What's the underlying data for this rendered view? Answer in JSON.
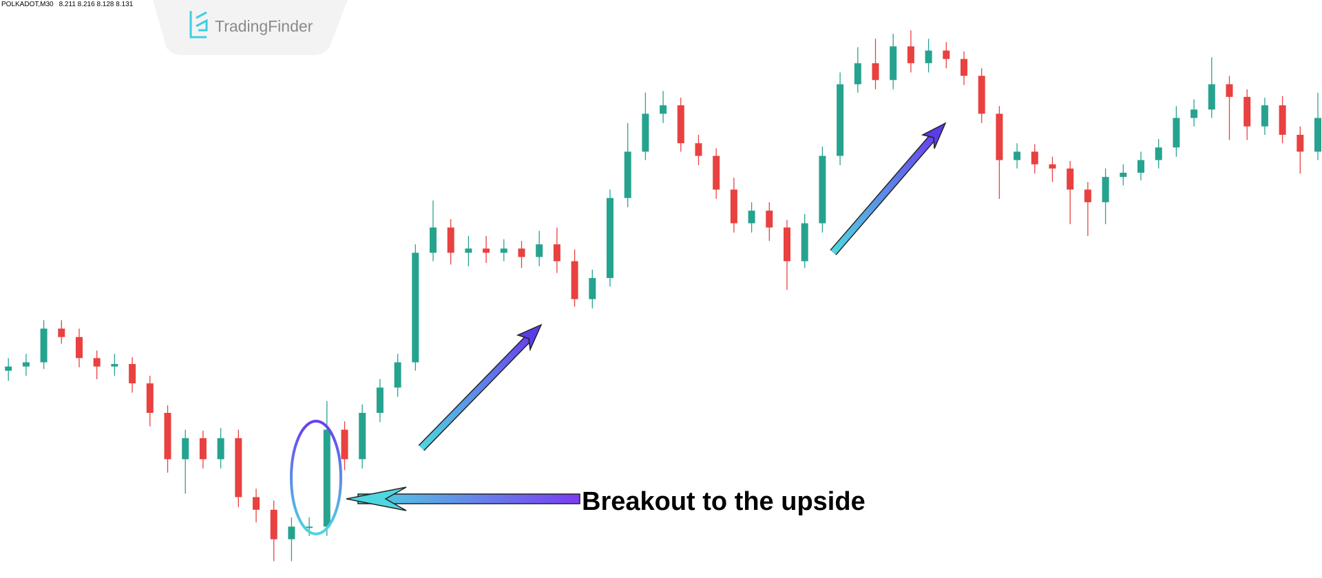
{
  "header": {
    "symbol": "POLKADOT,M30",
    "quotes": "8.211 8.216 8.128 8.131"
  },
  "logo": {
    "text": "TradingFinder"
  },
  "chart_data": {
    "type": "candlestick",
    "annotation": "Breakout to the upside",
    "up_color": "#26a38f",
    "down_color": "#e8413f",
    "ylim": [
      0,
      686
    ],
    "open": [
      246,
      251,
      256,
      296,
      286,
      261,
      251,
      254,
      231,
      196,
      141,
      166,
      141,
      166,
      96,
      81,
      46,
      61,
      61,
      176,
      141,
      196,
      226,
      256,
      386,
      416,
      386,
      391,
      386,
      391,
      381,
      396,
      376,
      331,
      356,
      451,
      506,
      551,
      561,
      516,
      501,
      461,
      421,
      436,
      416,
      376,
      421,
      501,
      586,
      611,
      591,
      631,
      611,
      626,
      616,
      596,
      551,
      496,
      506,
      491,
      486,
      461,
      446,
      476,
      481,
      496,
      511,
      546,
      556,
      586,
      571,
      536,
      561,
      526,
      506
    ],
    "high": [
      261,
      266,
      306,
      306,
      296,
      270,
      266,
      262,
      240,
      205,
      176,
      175,
      178,
      176,
      106,
      92,
      72,
      72,
      210,
      186,
      206,
      236,
      266,
      396,
      448,
      426,
      406,
      406,
      402,
      400,
      412,
      416,
      390,
      366,
      461,
      540,
      576,
      578,
      570,
      526,
      510,
      475,
      446,
      446,
      425,
      432,
      512,
      600,
      630,
      640,
      646,
      650,
      640,
      636,
      625,
      605,
      560,
      516,
      515,
      500,
      495,
      470,
      486,
      491,
      506,
      521,
      560,
      568,
      618,
      596,
      580,
      570,
      572,
      536,
      576
    ],
    "low": [
      234,
      240,
      248,
      278,
      250,
      236,
      240,
      220,
      180,
      125,
      100,
      130,
      130,
      84,
      66,
      20,
      20,
      50,
      50,
      128,
      130,
      185,
      215,
      246,
      376,
      372,
      370,
      374,
      376,
      368,
      370,
      362,
      322,
      320,
      346,
      440,
      496,
      540,
      506,
      490,
      450,
      410,
      410,
      400,
      342,
      368,
      410,
      490,
      576,
      580,
      580,
      600,
      600,
      605,
      585,
      540,
      450,
      486,
      480,
      470,
      420,
      406,
      420,
      466,
      472,
      486,
      500,
      536,
      546,
      520,
      520,
      526,
      516,
      480,
      496
    ],
    "close": [
      251,
      256,
      296,
      286,
      261,
      251,
      254,
      231,
      196,
      141,
      166,
      141,
      166,
      96,
      81,
      46,
      61,
      61,
      176,
      141,
      196,
      226,
      256,
      386,
      416,
      386,
      391,
      386,
      391,
      381,
      396,
      376,
      331,
      356,
      451,
      506,
      551,
      561,
      516,
      501,
      461,
      421,
      436,
      416,
      376,
      421,
      501,
      586,
      611,
      591,
      631,
      611,
      626,
      616,
      596,
      551,
      496,
      506,
      491,
      486,
      461,
      446,
      476,
      481,
      496,
      511,
      546,
      556,
      586,
      571,
      536,
      561,
      526,
      506,
      546
    ]
  }
}
